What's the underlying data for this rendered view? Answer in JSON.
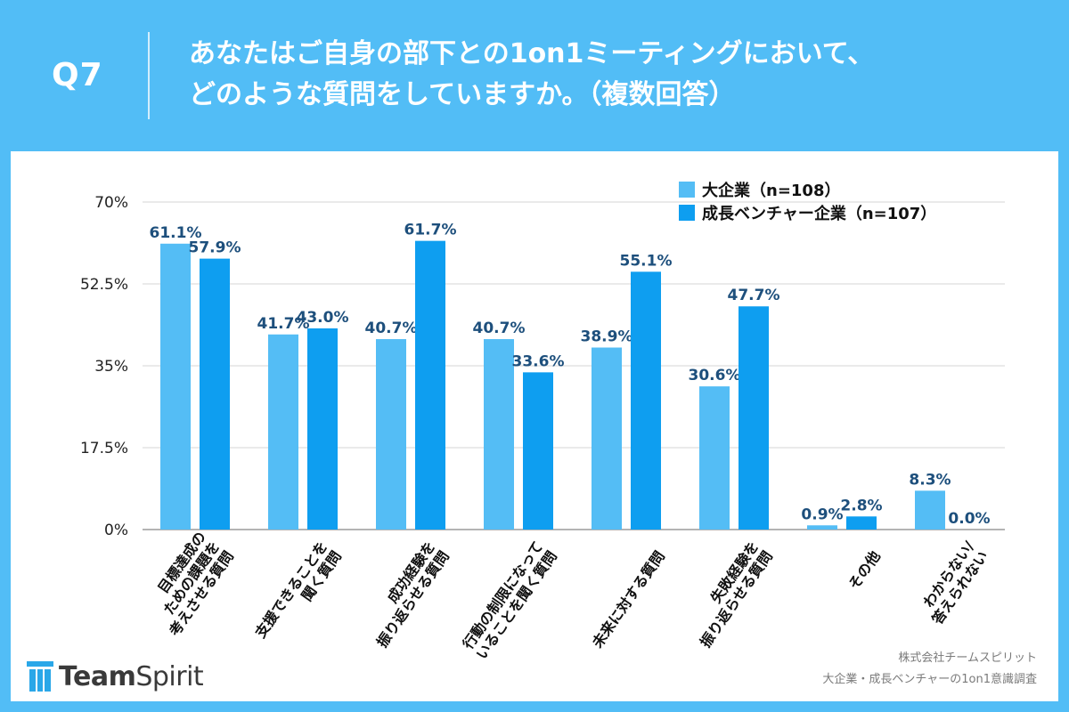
{
  "header": {
    "question_label": "Q7",
    "title_line1": "あなたはご自身の部下との1on1ミーティングにおいて、",
    "title_line2": "どのような質問をしていますか。（複数回答）"
  },
  "chart_data": {
    "type": "bar",
    "ylim": [
      0,
      70
    ],
    "yticks": [
      0,
      17.5,
      35,
      52.5,
      70
    ],
    "ytick_labels": [
      "0%",
      "17.5%",
      "35%",
      "52.5%",
      "70%"
    ],
    "grid": true,
    "legend_position": "top-right",
    "categories": [
      [
        "目標達成の",
        "ための課題を",
        "考えさせる質問"
      ],
      [
        "支援できることを",
        "聞く質問"
      ],
      [
        "成功経験を",
        "振り返らせる質問"
      ],
      [
        "行動の制限になって",
        "いることを聞く質問"
      ],
      [
        "未来に対する質問"
      ],
      [
        "失敗経験を",
        "振り返らせる質問"
      ],
      [
        "その他"
      ],
      [
        "わからない/",
        "答えられない"
      ]
    ],
    "series": [
      {
        "name": "大企業（n=108）",
        "color": "#54bdf5",
        "values": [
          61.1,
          41.7,
          40.7,
          40.7,
          38.9,
          30.6,
          0.9,
          8.3
        ],
        "labels": [
          "61.1%",
          "41.7%",
          "40.7%",
          "40.7%",
          "38.9%",
          "30.6%",
          "0.9%",
          "8.3%"
        ]
      },
      {
        "name": "成長ベンチャー企業（n=107）",
        "color": "#0e9ef0",
        "values": [
          57.9,
          43.0,
          61.7,
          33.6,
          55.1,
          47.7,
          2.8,
          0.0
        ],
        "labels": [
          "57.9%",
          "43.0%",
          "61.7%",
          "33.6%",
          "55.1%",
          "47.7%",
          "2.8%",
          "0.0%"
        ]
      }
    ],
    "label_color": "#1d4f7c"
  },
  "footer": {
    "logo_text_1": "Team",
    "logo_text_2": "Spirit",
    "source_line1": "株式会社チームスピリット",
    "source_line2": "大企業・成長ベンチャーの1on1意識調査"
  }
}
